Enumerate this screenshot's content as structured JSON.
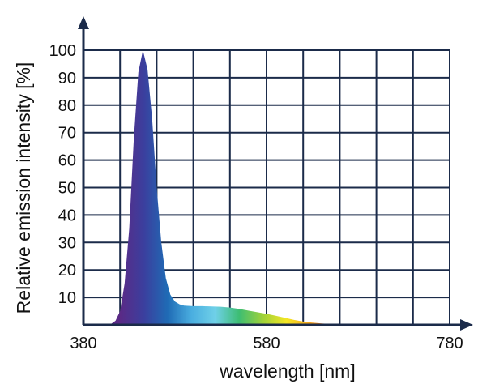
{
  "chart_data": {
    "type": "area",
    "title": "",
    "xlabel": "wavelength [nm]",
    "ylabel": "Relative emission intensity [%]",
    "xlim": [
      380,
      780
    ],
    "ylim": [
      0,
      100
    ],
    "x_ticks": [
      380,
      580,
      780
    ],
    "y_ticks": [
      10,
      20,
      30,
      40,
      50,
      60,
      70,
      80,
      90,
      100
    ],
    "grid": true,
    "legend": "none",
    "fill": "visible-spectrum gradient",
    "series": [
      {
        "x": [
          380,
          400,
          410,
          415,
          420,
          425,
          430,
          435,
          440,
          445,
          450,
          455,
          460,
          465,
          470,
          475,
          480,
          485,
          490,
          500,
          510,
          520,
          530,
          540,
          550,
          560,
          570,
          580,
          590,
          600,
          610,
          620,
          630,
          640,
          650,
          660,
          670,
          680,
          700,
          720,
          740,
          760,
          780
        ],
        "y": [
          0,
          0,
          0.3,
          1.5,
          5,
          15,
          35,
          68,
          92,
          100,
          93,
          75,
          50,
          30,
          17,
          11,
          8.5,
          7.5,
          7,
          6.8,
          6.8,
          6.7,
          6.6,
          6.3,
          5.8,
          5.2,
          4.6,
          4,
          3.3,
          2.6,
          1.8,
          1.2,
          0.8,
          0.5,
          0.3,
          0.2,
          0.1,
          0.05,
          0,
          0,
          0,
          0,
          0
        ]
      }
    ]
  },
  "colors": {
    "grid": "#1b2b4a",
    "axis": "#1b2b4a",
    "spectrum_stops": [
      "#5a2a86",
      "#3b3f9e",
      "#1f6bb5",
      "#4aaee0",
      "#6fd0e8",
      "#3dbd73",
      "#9fd23a",
      "#f4e624",
      "#f4a21c",
      "#e8572a",
      "#d2332a"
    ]
  }
}
